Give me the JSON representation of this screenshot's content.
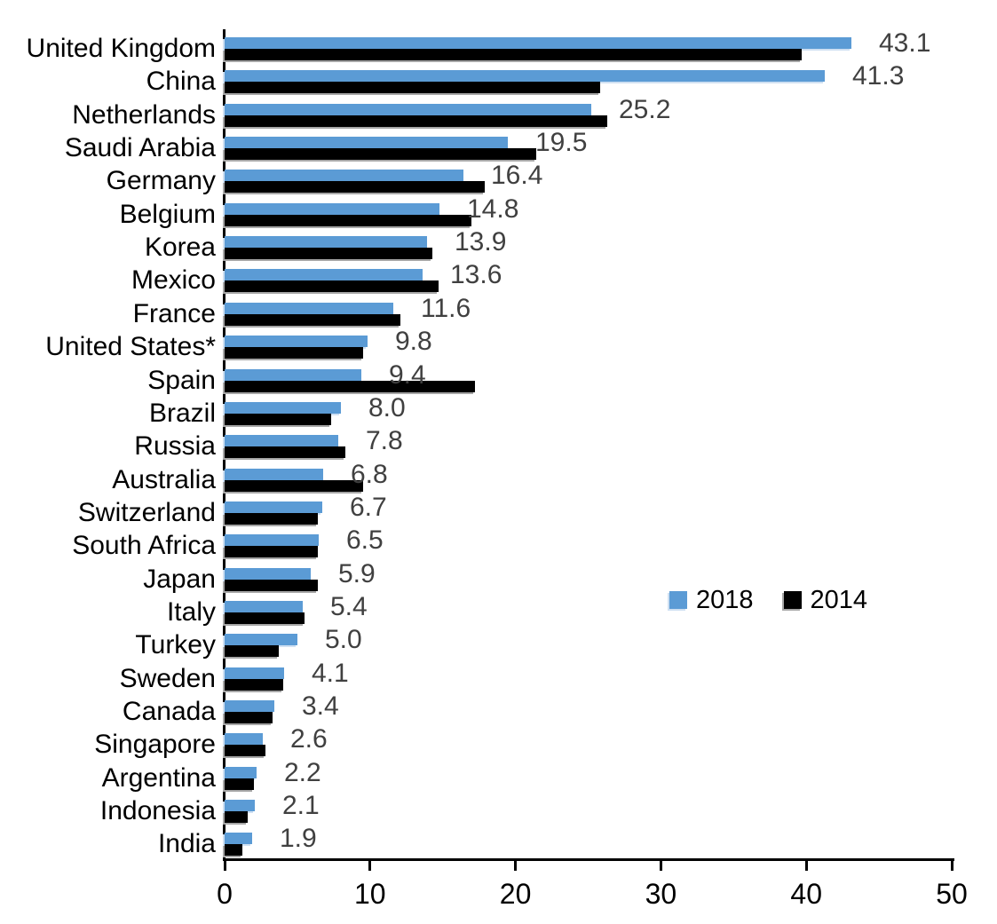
{
  "chart_data": {
    "type": "bar",
    "orientation": "horizontal",
    "title": "",
    "xlabel": "",
    "ylabel": "",
    "grid": false,
    "legend_position": "center-right",
    "categories": [
      "United Kingdom",
      "China",
      "Netherlands",
      "Saudi Arabia",
      "Germany",
      "Belgium",
      "Korea",
      "Mexico",
      "France",
      "United States*",
      "Spain",
      "Brazil",
      "Russia",
      "Australia",
      "Switzerland",
      "South Africa",
      "Japan",
      "Italy",
      "Turkey",
      "Sweden",
      "Canada",
      "Singapore",
      "Argentina",
      "Indonesia",
      "India"
    ],
    "series": [
      {
        "name": "2018",
        "color": "#5B9BD5",
        "values": [
          43.1,
          41.3,
          25.2,
          19.5,
          16.4,
          14.8,
          13.9,
          13.6,
          11.6,
          9.8,
          9.4,
          8.0,
          7.8,
          6.8,
          6.7,
          6.5,
          5.9,
          5.4,
          5.0,
          4.1,
          3.4,
          2.6,
          2.2,
          2.1,
          1.9
        ]
      },
      {
        "name": "2014",
        "color": "#000000",
        "values": [
          39.7,
          25.8,
          26.3,
          21.4,
          17.9,
          17.0,
          14.3,
          14.7,
          12.1,
          9.5,
          17.2,
          7.3,
          8.3,
          9.5,
          6.4,
          6.4,
          6.4,
          5.5,
          3.7,
          4.0,
          3.3,
          2.8,
          2.0,
          1.6,
          1.2
        ]
      }
    ],
    "data_labels": {
      "on_series": "2018",
      "decimals": 1,
      "color": "#404040",
      "labels": [
        "43.1",
        "41.3",
        "25.2",
        "19.5",
        "16.4",
        "14.8",
        "13.9",
        "13.6",
        "11.6",
        "9.8",
        "9.4",
        "8.0",
        "7.8",
        "6.8",
        "6.7",
        "6.5",
        "5.9",
        "5.4",
        "5.0",
        "4.1",
        "3.4",
        "2.6",
        "2.2",
        "2.1",
        "1.9"
      ]
    },
    "x_axis": {
      "min": 0,
      "max": 50,
      "ticks": [
        0,
        10,
        20,
        30,
        40,
        50
      ]
    }
  }
}
